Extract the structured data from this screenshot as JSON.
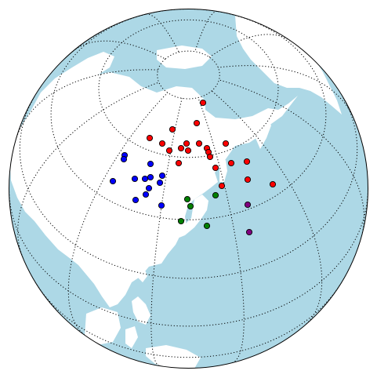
{
  "map": {
    "projection": "orthographic",
    "ocean_color": "#add8e6",
    "land_color": "#ffffff",
    "graticule": "dotted"
  },
  "point_groups": [
    {
      "color": "#ff0000",
      "label": ""
    },
    {
      "color": "#0000ff",
      "label": ""
    },
    {
      "color": "#008000",
      "label": ""
    },
    {
      "color": "#800080",
      "label": ""
    }
  ]
}
